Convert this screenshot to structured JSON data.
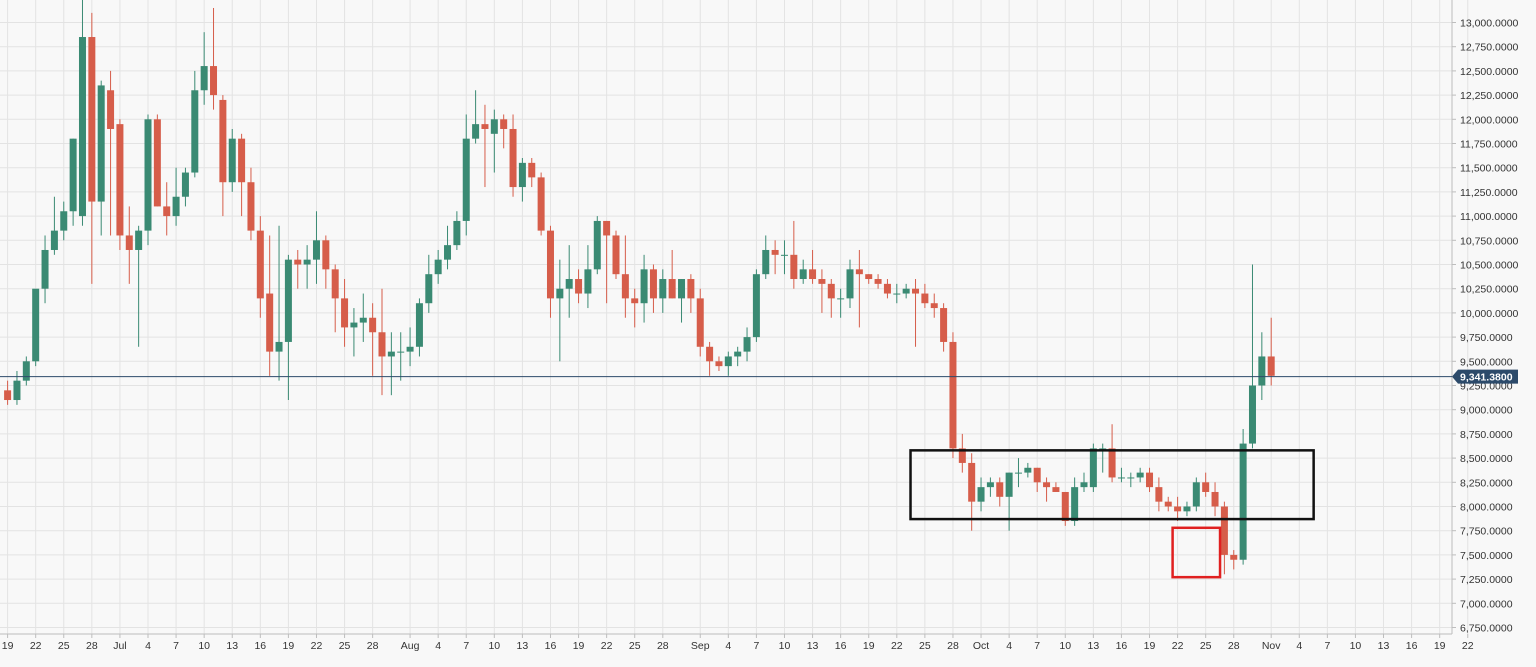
{
  "chart_data": {
    "type": "candlestick",
    "title": "",
    "xlabel": "",
    "ylabel": "",
    "ylim": [
      6750,
      13000
    ],
    "grid": true,
    "colors": {
      "up": "#3a8a73",
      "down": "#d65d4a",
      "price_line": "#2c4a6a",
      "price_label_bg": "#2c4a6a",
      "range_box": "#111111",
      "highlight_box": "#e02020"
    },
    "y_ticks": [
      "13,000.0000",
      "12,750.0000",
      "12,500.0000",
      "12,250.0000",
      "12,000.0000",
      "11,750.0000",
      "11,500.0000",
      "11,250.0000",
      "11,000.0000",
      "10,750.0000",
      "10,500.0000",
      "10,250.0000",
      "10,000.0000",
      "9,750.0000",
      "9,500.0000",
      "9,250.0000",
      "9,000.0000",
      "8,750.0000",
      "8,500.0000",
      "8,250.0000",
      "8,000.0000",
      "7,750.0000",
      "7,500.0000",
      "7,250.0000",
      "7,000.0000",
      "6,750.0000"
    ],
    "x_ticks": [
      "19",
      "22",
      "25",
      "28",
      "Jul",
      "4",
      "7",
      "10",
      "13",
      "16",
      "19",
      "22",
      "25",
      "28",
      "Aug",
      "4",
      "7",
      "10",
      "13",
      "16",
      "19",
      "22",
      "25",
      "28",
      "Sep",
      "4",
      "7",
      "10",
      "13",
      "16",
      "19",
      "22",
      "25",
      "28",
      "Oct",
      "4",
      "7",
      "10",
      "13",
      "16",
      "19",
      "22",
      "25",
      "28",
      "Nov",
      "4",
      "7",
      "10",
      "13",
      "16",
      "19",
      "22"
    ],
    "current_price": 9341.38,
    "current_price_label": "9,341.3800",
    "range_box": {
      "x_from": "Sep 24",
      "x_to": "Nov 5",
      "y_from": 7870,
      "y_to": 8580
    },
    "highlight_box": {
      "x_from": "Oct 22",
      "x_to": "Oct 26",
      "y_from": 7270,
      "y_to": 7780
    },
    "candles": [
      {
        "date": "Jun 19",
        "open": 9200,
        "high": 9300,
        "low": 9050,
        "close": 9100
      },
      {
        "date": "Jun 20",
        "open": 9100,
        "high": 9400,
        "low": 9050,
        "close": 9300
      },
      {
        "date": "Jun 21",
        "open": 9300,
        "high": 9550,
        "low": 9250,
        "close": 9500
      },
      {
        "date": "Jun 22",
        "open": 9500,
        "high": 10200,
        "low": 9450,
        "close": 10250
      },
      {
        "date": "Jun 23",
        "open": 10250,
        "high": 10800,
        "low": 10100,
        "close": 10650
      },
      {
        "date": "Jun 24",
        "open": 10650,
        "high": 11200,
        "low": 10600,
        "close": 10850
      },
      {
        "date": "Jun 25",
        "open": 10850,
        "high": 11150,
        "low": 10750,
        "close": 11050
      },
      {
        "date": "Jun 26",
        "open": 11050,
        "high": 11800,
        "low": 10900,
        "close": 11800
      },
      {
        "date": "Jun 27",
        "open": 11000,
        "high": 13300,
        "low": 10900,
        "close": 12850
      },
      {
        "date": "Jun 28",
        "open": 12850,
        "high": 13100,
        "low": 10300,
        "close": 11150
      },
      {
        "date": "Jun 29",
        "open": 11150,
        "high": 12400,
        "low": 10800,
        "close": 12350
      },
      {
        "date": "Jun 30",
        "open": 12300,
        "high": 12500,
        "low": 10800,
        "close": 11900
      },
      {
        "date": "Jul 1",
        "open": 11950,
        "high": 12000,
        "low": 10650,
        "close": 10800
      },
      {
        "date": "Jul 2",
        "open": 10800,
        "high": 11100,
        "low": 10300,
        "close": 10650
      },
      {
        "date": "Jul 3",
        "open": 10650,
        "high": 10900,
        "low": 9650,
        "close": 10850
      },
      {
        "date": "Jul 4",
        "open": 10850,
        "high": 12050,
        "low": 10700,
        "close": 12000
      },
      {
        "date": "Jul 5",
        "open": 12000,
        "high": 12050,
        "low": 11100,
        "close": 11100
      },
      {
        "date": "Jul 6",
        "open": 11100,
        "high": 11350,
        "low": 10800,
        "close": 11000
      },
      {
        "date": "Jul 7",
        "open": 11000,
        "high": 11500,
        "low": 10900,
        "close": 11200
      },
      {
        "date": "Jul 8",
        "open": 11200,
        "high": 11500,
        "low": 11100,
        "close": 11450
      },
      {
        "date": "Jul 9",
        "open": 11450,
        "high": 12500,
        "low": 11400,
        "close": 12300
      },
      {
        "date": "Jul 10",
        "open": 12300,
        "high": 12900,
        "low": 12150,
        "close": 12550
      },
      {
        "date": "Jul 11",
        "open": 12550,
        "high": 13150,
        "low": 12100,
        "close": 12250
      },
      {
        "date": "Jul 12",
        "open": 12200,
        "high": 12250,
        "low": 11000,
        "close": 11350
      },
      {
        "date": "Jul 13",
        "open": 11350,
        "high": 11900,
        "low": 11250,
        "close": 11800
      },
      {
        "date": "Jul 14",
        "open": 11800,
        "high": 11850,
        "low": 11000,
        "close": 11350
      },
      {
        "date": "Jul 15",
        "open": 11350,
        "high": 11500,
        "low": 10750,
        "close": 10850
      },
      {
        "date": "Jul 16",
        "open": 10850,
        "high": 11000,
        "low": 9950,
        "close": 10150
      },
      {
        "date": "Jul 17",
        "open": 10200,
        "high": 10800,
        "low": 9350,
        "close": 9600
      },
      {
        "date": "Jul 18",
        "open": 9600,
        "high": 10900,
        "low": 9300,
        "close": 9700
      },
      {
        "date": "Jul 19",
        "open": 9700,
        "high": 10600,
        "low": 9100,
        "close": 10550
      },
      {
        "date": "Jul 20",
        "open": 10550,
        "high": 10650,
        "low": 10250,
        "close": 10500
      },
      {
        "date": "Jul 21",
        "open": 10500,
        "high": 10700,
        "low": 10250,
        "close": 10550
      },
      {
        "date": "Jul 22",
        "open": 10550,
        "high": 11050,
        "low": 10300,
        "close": 10750
      },
      {
        "date": "Jul 23",
        "open": 10750,
        "high": 10800,
        "low": 10250,
        "close": 10450
      },
      {
        "date": "Jul 24",
        "open": 10450,
        "high": 10500,
        "low": 9800,
        "close": 10150
      },
      {
        "date": "Jul 25",
        "open": 10150,
        "high": 10350,
        "low": 9650,
        "close": 9850
      },
      {
        "date": "Jul 26",
        "open": 9850,
        "high": 10050,
        "low": 9550,
        "close": 9900
      },
      {
        "date": "Jul 27",
        "open": 9900,
        "high": 10200,
        "low": 9700,
        "close": 9950
      },
      {
        "date": "Jul 28",
        "open": 9950,
        "high": 10100,
        "low": 9350,
        "close": 9800
      },
      {
        "date": "Jul 29",
        "open": 9800,
        "high": 10250,
        "low": 9150,
        "close": 9550
      },
      {
        "date": "Jul 30",
        "open": 9550,
        "high": 9800,
        "low": 9150,
        "close": 9600
      },
      {
        "date": "Jul 31",
        "open": 9600,
        "high": 9800,
        "low": 9300,
        "close": 9600
      },
      {
        "date": "Aug 1",
        "open": 9600,
        "high": 9850,
        "low": 9450,
        "close": 9650
      },
      {
        "date": "Aug 2",
        "open": 9650,
        "high": 10150,
        "low": 9550,
        "close": 10100
      },
      {
        "date": "Aug 3",
        "open": 10100,
        "high": 10600,
        "low": 10000,
        "close": 10400
      },
      {
        "date": "Aug 4",
        "open": 10400,
        "high": 10650,
        "low": 10300,
        "close": 10550
      },
      {
        "date": "Aug 5",
        "open": 10550,
        "high": 10900,
        "low": 10450,
        "close": 10700
      },
      {
        "date": "Aug 6",
        "open": 10700,
        "high": 11050,
        "low": 10650,
        "close": 10950
      },
      {
        "date": "Aug 7",
        "open": 10950,
        "high": 12050,
        "low": 10800,
        "close": 11800
      },
      {
        "date": "Aug 8",
        "open": 11800,
        "high": 12300,
        "low": 11750,
        "close": 11950
      },
      {
        "date": "Aug 9",
        "open": 11950,
        "high": 12150,
        "low": 11300,
        "close": 11900
      },
      {
        "date": "Aug 10",
        "open": 11850,
        "high": 12100,
        "low": 11450,
        "close": 12000
      },
      {
        "date": "Aug 11",
        "open": 12000,
        "high": 12050,
        "low": 11700,
        "close": 11900
      },
      {
        "date": "Aug 12",
        "open": 11900,
        "high": 12050,
        "low": 11200,
        "close": 11300
      },
      {
        "date": "Aug 13",
        "open": 11300,
        "high": 11600,
        "low": 11150,
        "close": 11550
      },
      {
        "date": "Aug 14",
        "open": 11550,
        "high": 11600,
        "low": 11300,
        "close": 11400
      },
      {
        "date": "Aug 15",
        "open": 11400,
        "high": 11450,
        "low": 10800,
        "close": 10850
      },
      {
        "date": "Aug 16",
        "open": 10850,
        "high": 10900,
        "low": 9950,
        "close": 10150
      },
      {
        "date": "Aug 17",
        "open": 10150,
        "high": 10550,
        "low": 9500,
        "close": 10250
      },
      {
        "date": "Aug 18",
        "open": 10250,
        "high": 10700,
        "low": 9950,
        "close": 10350
      },
      {
        "date": "Aug 19",
        "open": 10350,
        "high": 10450,
        "low": 10100,
        "close": 10200
      },
      {
        "date": "Aug 20",
        "open": 10200,
        "high": 10700,
        "low": 10050,
        "close": 10450
      },
      {
        "date": "Aug 21",
        "open": 10450,
        "high": 11000,
        "low": 10400,
        "close": 10950
      },
      {
        "date": "Aug 22",
        "open": 10950,
        "high": 10950,
        "low": 10100,
        "close": 10800
      },
      {
        "date": "Aug 23",
        "open": 10800,
        "high": 10850,
        "low": 10350,
        "close": 10400
      },
      {
        "date": "Aug 24",
        "open": 10400,
        "high": 10800,
        "low": 9950,
        "close": 10150
      },
      {
        "date": "Aug 25",
        "open": 10150,
        "high": 10250,
        "low": 9850,
        "close": 10100
      },
      {
        "date": "Aug 26",
        "open": 10100,
        "high": 10600,
        "low": 9900,
        "close": 10450
      },
      {
        "date": "Aug 27",
        "open": 10450,
        "high": 10500,
        "low": 10000,
        "close": 10150
      },
      {
        "date": "Aug 28",
        "open": 10150,
        "high": 10450,
        "low": 10000,
        "close": 10350
      },
      {
        "date": "Aug 29",
        "open": 10350,
        "high": 10650,
        "low": 10150,
        "close": 10150
      },
      {
        "date": "Aug 30",
        "open": 10150,
        "high": 10350,
        "low": 9900,
        "close": 10350
      },
      {
        "date": "Aug 31",
        "open": 10350,
        "high": 10400,
        "low": 10000,
        "close": 10150
      },
      {
        "date": "Sep 1",
        "open": 10150,
        "high": 10250,
        "low": 9550,
        "close": 9650
      },
      {
        "date": "Sep 2",
        "open": 9650,
        "high": 9700,
        "low": 9350,
        "close": 9500
      },
      {
        "date": "Sep 3",
        "open": 9500,
        "high": 9550,
        "low": 9400,
        "close": 9450
      },
      {
        "date": "Sep 4",
        "open": 9450,
        "high": 9600,
        "low": 9350,
        "close": 9550
      },
      {
        "date": "Sep 5",
        "open": 9550,
        "high": 9650,
        "low": 9450,
        "close": 9600
      },
      {
        "date": "Sep 6",
        "open": 9600,
        "high": 9850,
        "low": 9500,
        "close": 9750
      },
      {
        "date": "Sep 7",
        "open": 9750,
        "high": 10450,
        "low": 9700,
        "close": 10400
      },
      {
        "date": "Sep 8",
        "open": 10400,
        "high": 10800,
        "low": 10350,
        "close": 10650
      },
      {
        "date": "Sep 9",
        "open": 10650,
        "high": 10750,
        "low": 10400,
        "close": 10600
      },
      {
        "date": "Sep 10",
        "open": 10600,
        "high": 10750,
        "low": 10400,
        "close": 10600
      },
      {
        "date": "Sep 11",
        "open": 10600,
        "high": 10950,
        "low": 10250,
        "close": 10350
      },
      {
        "date": "Sep 12",
        "open": 10350,
        "high": 10550,
        "low": 10300,
        "close": 10450
      },
      {
        "date": "Sep 13",
        "open": 10450,
        "high": 10650,
        "low": 10300,
        "close": 10350
      },
      {
        "date": "Sep 14",
        "open": 10350,
        "high": 10450,
        "low": 10000,
        "close": 10300
      },
      {
        "date": "Sep 15",
        "open": 10300,
        "high": 10350,
        "low": 9950,
        "close": 10150
      },
      {
        "date": "Sep 16",
        "open": 10150,
        "high": 10250,
        "low": 9950,
        "close": 10150
      },
      {
        "date": "Sep 17",
        "open": 10150,
        "high": 10550,
        "low": 10050,
        "close": 10450
      },
      {
        "date": "Sep 18",
        "open": 10450,
        "high": 10650,
        "low": 9850,
        "close": 10400
      },
      {
        "date": "Sep 19",
        "open": 10400,
        "high": 10400,
        "low": 10300,
        "close": 10350
      },
      {
        "date": "Sep 20",
        "open": 10350,
        "high": 10400,
        "low": 10250,
        "close": 10300
      },
      {
        "date": "Sep 21",
        "open": 10300,
        "high": 10350,
        "low": 10150,
        "close": 10200
      },
      {
        "date": "Sep 22",
        "open": 10200,
        "high": 10300,
        "low": 10100,
        "close": 10200
      },
      {
        "date": "Sep 23",
        "open": 10200,
        "high": 10300,
        "low": 10150,
        "close": 10250
      },
      {
        "date": "Sep 24",
        "open": 10250,
        "high": 10350,
        "low": 9650,
        "close": 10200
      },
      {
        "date": "Sep 25",
        "open": 10200,
        "high": 10300,
        "low": 10050,
        "close": 10100
      },
      {
        "date": "Sep 26",
        "open": 10100,
        "high": 10200,
        "low": 9950,
        "close": 10050
      },
      {
        "date": "Sep 27",
        "open": 10050,
        "high": 10100,
        "low": 9600,
        "close": 9700
      },
      {
        "date": "Sep 28",
        "open": 9700,
        "high": 9800,
        "low": 8500,
        "close": 8600
      },
      {
        "date": "Sep 29",
        "open": 8600,
        "high": 8750,
        "low": 8350,
        "close": 8450
      },
      {
        "date": "Sep 30",
        "open": 8450,
        "high": 8550,
        "low": 7750,
        "close": 8050
      },
      {
        "date": "Oct 1",
        "open": 8050,
        "high": 8300,
        "low": 7950,
        "close": 8200
      },
      {
        "date": "Oct 2",
        "open": 8200,
        "high": 8300,
        "low": 8100,
        "close": 8250
      },
      {
        "date": "Oct 3",
        "open": 8250,
        "high": 8300,
        "low": 8000,
        "close": 8100
      },
      {
        "date": "Oct 4",
        "open": 8100,
        "high": 8350,
        "low": 7750,
        "close": 8350
      },
      {
        "date": "Oct 5",
        "open": 8350,
        "high": 8500,
        "low": 8200,
        "close": 8350
      },
      {
        "date": "Oct 6",
        "open": 8350,
        "high": 8450,
        "low": 8300,
        "close": 8400
      },
      {
        "date": "Oct 7",
        "open": 8400,
        "high": 8400,
        "low": 8150,
        "close": 8250
      },
      {
        "date": "Oct 8",
        "open": 8250,
        "high": 8300,
        "low": 8050,
        "close": 8200
      },
      {
        "date": "Oct 9",
        "open": 8200,
        "high": 8250,
        "low": 8150,
        "close": 8150
      },
      {
        "date": "Oct 10",
        "open": 8150,
        "high": 8150,
        "low": 7800,
        "close": 7850
      },
      {
        "date": "Oct 11",
        "open": 7850,
        "high": 8300,
        "low": 7800,
        "close": 8200
      },
      {
        "date": "Oct 12",
        "open": 8200,
        "high": 8350,
        "low": 8150,
        "close": 8250
      },
      {
        "date": "Oct 13",
        "open": 8200,
        "high": 8650,
        "low": 8150,
        "close": 8600
      },
      {
        "date": "Oct 14",
        "open": 8600,
        "high": 8650,
        "low": 8350,
        "close": 8600
      },
      {
        "date": "Oct 15",
        "open": 8600,
        "high": 8850,
        "low": 8250,
        "close": 8300
      },
      {
        "date": "Oct 16",
        "open": 8300,
        "high": 8400,
        "low": 8250,
        "close": 8300
      },
      {
        "date": "Oct 17",
        "open": 8300,
        "high": 8350,
        "low": 8200,
        "close": 8300
      },
      {
        "date": "Oct 18",
        "open": 8300,
        "high": 8400,
        "low": 8250,
        "close": 8350
      },
      {
        "date": "Oct 19",
        "open": 8350,
        "high": 8400,
        "low": 8150,
        "close": 8200
      },
      {
        "date": "Oct 20",
        "open": 8200,
        "high": 8300,
        "low": 7950,
        "close": 8050
      },
      {
        "date": "Oct 21",
        "open": 8050,
        "high": 8100,
        "low": 7950,
        "close": 8000
      },
      {
        "date": "Oct 22",
        "open": 8000,
        "high": 8100,
        "low": 7850,
        "close": 7950
      },
      {
        "date": "Oct 23",
        "open": 7950,
        "high": 8050,
        "low": 7900,
        "close": 8000
      },
      {
        "date": "Oct 24",
        "open": 8000,
        "high": 8300,
        "low": 7950,
        "close": 8250
      },
      {
        "date": "Oct 25",
        "open": 8250,
        "high": 8350,
        "low": 8100,
        "close": 8150
      },
      {
        "date": "Oct 26",
        "open": 8150,
        "high": 8250,
        "low": 7900,
        "close": 8000
      },
      {
        "date": "Oct 27",
        "open": 8000,
        "high": 8050,
        "low": 7300,
        "close": 7500
      },
      {
        "date": "Oct 28",
        "open": 7500,
        "high": 7550,
        "low": 7350,
        "close": 7450
      },
      {
        "date": "Oct 29",
        "open": 7450,
        "high": 8800,
        "low": 7400,
        "close": 8650
      },
      {
        "date": "Oct 30",
        "open": 8650,
        "high": 10500,
        "low": 8600,
        "close": 9250
      },
      {
        "date": "Oct 31",
        "open": 9250,
        "high": 9800,
        "low": 9100,
        "close": 9550
      },
      {
        "date": "Nov 1",
        "open": 9550,
        "high": 9950,
        "low": 9250,
        "close": 9350
      }
    ]
  }
}
